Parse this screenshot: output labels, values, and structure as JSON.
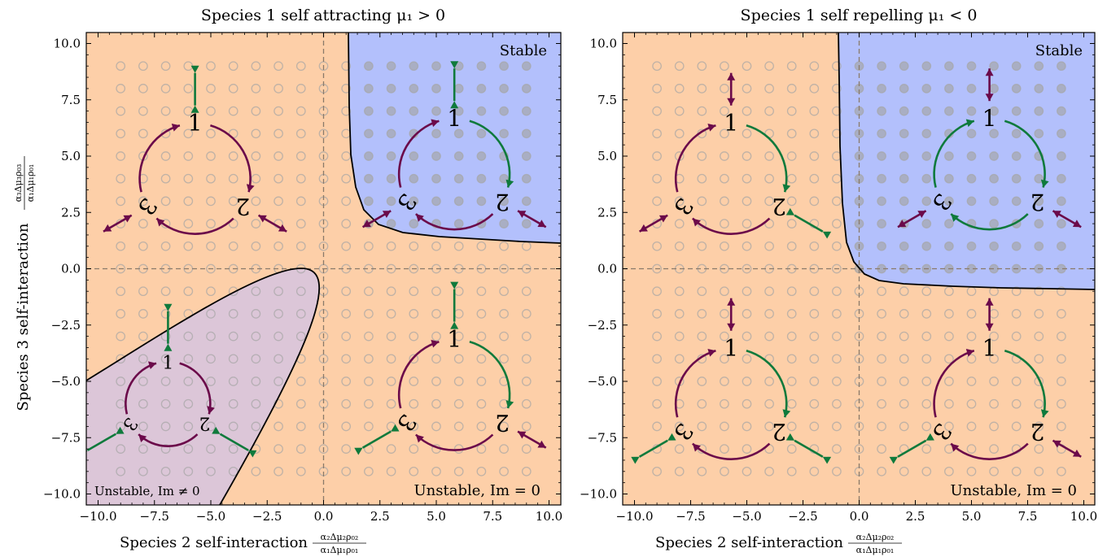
{
  "figure": {
    "ylabel": "Species 3 self-interaction",
    "ylabel_frac": {
      "num": "α₃Δμ₃ρ₀₃",
      "den": "α₁Δμ₁ρ₀₁"
    },
    "xlabel": "Species 2 self-interaction",
    "xlabel_frac": {
      "num": "α₂Δμ₂ρ₀₂",
      "den": "α₁Δμ₁ρ₀₁"
    }
  },
  "colors": {
    "unstable_real": "#fdcfa8",
    "stable": "#b3c0fc",
    "unstable_complex": "#dcc6d8",
    "attract_arrow": "#0f7a3c",
    "repel_arrow": "#6b0a4a",
    "marker": "#a5a5a5",
    "boundary": "#000000",
    "dashed_axis": "#8a7a6a"
  },
  "chart_data": [
    {
      "type": "phase-diagram",
      "title": "Species 1 self attracting μ₁ > 0",
      "xlim": [
        -10.5,
        10.5
      ],
      "ylim": [
        -10.5,
        10.5
      ],
      "xticks": [
        -10.0,
        -7.5,
        -5.0,
        -2.5,
        0.0,
        2.5,
        5.0,
        7.5,
        10.0
      ],
      "yticks": [
        -10.0,
        -7.5,
        -5.0,
        -2.5,
        0.0,
        2.5,
        5.0,
        7.5,
        10.0
      ],
      "tick_labels": [
        "−10.0",
        "−7.5",
        "−5.0",
        "−2.5",
        "0.0",
        "2.5",
        "5.0",
        "7.5",
        "10.0"
      ],
      "regions": [
        {
          "name": "stable",
          "label": "Stable",
          "boundary": "hyperbola",
          "asymptote_x": 1.1,
          "asymptote_y": 1.1,
          "quadrant": "upper-right"
        },
        {
          "name": "unstable_complex",
          "label": "Unstable, Im ≠ 0",
          "boundary": "parabola-like",
          "vertex": [
            -0.6,
            0.0
          ]
        },
        {
          "name": "unstable_real",
          "label": "Unstable, Im = 0"
        }
      ],
      "sample_grid": {
        "x_from": -9.0,
        "x_to": 9.0,
        "y_from": -9.0,
        "y_to": 9.0,
        "step": 1.0
      },
      "sample_points_in_stable_region_filled": true,
      "insets": [
        {
          "center": [
            -5.7,
            4.0
          ],
          "self1": "attract",
          "self2": "repel",
          "self3": "repel",
          "cycle": "1→2→3 purple"
        },
        {
          "center": [
            5.8,
            4.2
          ],
          "self1": "attract",
          "self2": "repel",
          "self3": "repel",
          "cycle": "mixed"
        },
        {
          "center": [
            -6.9,
            -6.0
          ],
          "self1": "attract",
          "self2": "attract",
          "self3": "attract",
          "cycle": "1→2→3 purple"
        },
        {
          "center": [
            5.8,
            -5.6
          ],
          "self1": "attract",
          "self2": "repel",
          "self3": "attract",
          "cycle": "mixed"
        }
      ],
      "node_labels": [
        "1",
        "2",
        "3"
      ]
    },
    {
      "type": "phase-diagram",
      "title": "Species 1 self repelling μ₁ < 0",
      "xlim": [
        -10.5,
        10.5
      ],
      "ylim": [
        -10.5,
        10.5
      ],
      "xticks": [
        -10.0,
        -7.5,
        -5.0,
        -2.5,
        0.0,
        2.5,
        5.0,
        7.5,
        10.0
      ],
      "yticks": [
        -10.0,
        -7.5,
        -5.0,
        -2.5,
        0.0,
        2.5,
        5.0,
        7.5,
        10.0
      ],
      "tick_labels": [
        "−10.0",
        "−7.5",
        "−5.0",
        "−2.5",
        "0.0",
        "2.5",
        "5.0",
        "7.5",
        "10.0"
      ],
      "regions": [
        {
          "name": "stable",
          "label": "Stable",
          "boundary": "hyperbola",
          "asymptote_x": -0.9,
          "asymptote_y": -0.9,
          "quadrant": "upper-right"
        },
        {
          "name": "unstable_real",
          "label": "Unstable, Im = 0"
        }
      ],
      "sample_grid": {
        "x_from": -9.0,
        "x_to": 9.0,
        "y_from": -9.0,
        "y_to": 9.0,
        "step": 1.0
      },
      "sample_points_in_stable_region_filled": true,
      "insets": [
        {
          "center": [
            -5.7,
            4.0
          ],
          "self1": "repel",
          "self2": "attract",
          "self3": "repel",
          "cycle": "mixed"
        },
        {
          "center": [
            5.8,
            4.2
          ],
          "self1": "repel",
          "self2": "repel",
          "self3": "repel",
          "cycle": "1→2→3 green"
        },
        {
          "center": [
            -5.7,
            -6.0
          ],
          "self1": "repel",
          "self2": "attract",
          "self3": "attract",
          "cycle": "mixed"
        },
        {
          "center": [
            5.8,
            -6.0
          ],
          "self1": "repel",
          "self2": "repel",
          "self3": "attract",
          "cycle": "mixed"
        }
      ],
      "node_labels": [
        "1",
        "2",
        "3"
      ]
    }
  ]
}
